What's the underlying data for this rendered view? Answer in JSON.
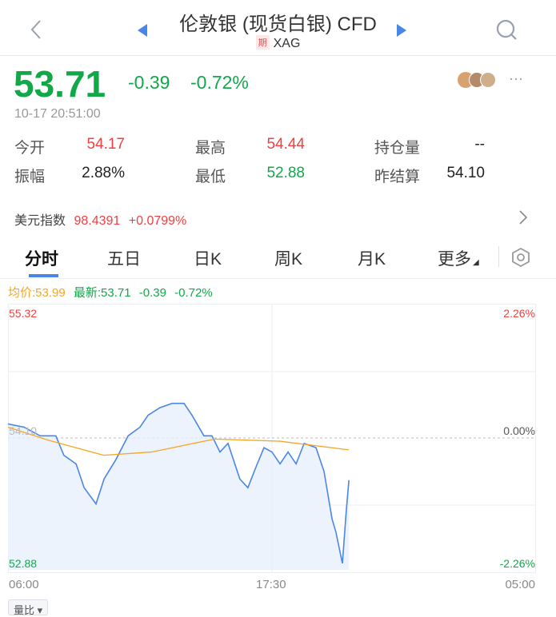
{
  "header": {
    "title": "伦敦银 (现货白银) CFD",
    "badge": "期",
    "symbol": "XAG"
  },
  "quote": {
    "price": "53.71",
    "change": "-0.39",
    "change_pct": "-0.72%",
    "time": "10-17 20:51:00"
  },
  "stats": [
    {
      "label": "今开",
      "value": "54.17",
      "color": "#f04040"
    },
    {
      "label": "最高",
      "value": "54.44",
      "color": "#f04040"
    },
    {
      "label": "持仓量",
      "value": "--",
      "color": "#222222"
    },
    {
      "label": "振幅",
      "value": "2.88%",
      "color": "#222222"
    },
    {
      "label": "最低",
      "value": "52.88",
      "color": "#12a84a"
    },
    {
      "label": "昨结算",
      "value": "54.10",
      "color": "#222222"
    }
  ],
  "index": {
    "label": "美元指数",
    "value": "98.4391",
    "change": "+0.0799%"
  },
  "tabs": [
    {
      "label": "分时",
      "active": true
    },
    {
      "label": "五日"
    },
    {
      "label": "日K"
    },
    {
      "label": "周K"
    },
    {
      "label": "月K"
    },
    {
      "label": "更多"
    }
  ],
  "legend": {
    "avg": "均价:53.99",
    "latest": "最新:53.71",
    "change": "-0.39",
    "pct": "-0.72%"
  },
  "bottom_button": "量比",
  "chart_data": {
    "type": "line",
    "ylim": [
      52.88,
      55.32
    ],
    "prev_close": 54.1,
    "y_labels_left": [
      "55.32",
      "54.10",
      "52.88"
    ],
    "y_labels_right": [
      "2.26%",
      "0.00%",
      "-2.26%"
    ],
    "x_ticks": [
      "06:00",
      "17:30",
      "05:00"
    ],
    "x_range": [
      "06:00",
      "05:00"
    ],
    "colors": {
      "price": "#4a86e8",
      "avg": "#f5a623",
      "up": "#f04040",
      "down": "#12a84a"
    },
    "series": [
      {
        "name": "最新",
        "values": [
          [
            "06:00",
            54.23
          ],
          [
            "06:42",
            54.2
          ],
          [
            "07:24",
            54.12
          ],
          [
            "08:05",
            54.12
          ],
          [
            "08:26",
            53.94
          ],
          [
            "08:58",
            53.86
          ],
          [
            "09:19",
            53.64
          ],
          [
            "09:50",
            53.49
          ],
          [
            "10:11",
            53.72
          ],
          [
            "10:42",
            53.9
          ],
          [
            "11:14",
            54.12
          ],
          [
            "11:45",
            54.2
          ],
          [
            "12:06",
            54.31
          ],
          [
            "12:37",
            54.38
          ],
          [
            "13:09",
            54.42
          ],
          [
            "13:40",
            54.42
          ],
          [
            "14:01",
            54.31
          ],
          [
            "14:32",
            54.12
          ],
          [
            "14:53",
            54.12
          ],
          [
            "15:14",
            53.97
          ],
          [
            "15:35",
            54.05
          ],
          [
            "16:06",
            53.72
          ],
          [
            "16:27",
            53.64
          ],
          [
            "16:48",
            53.83
          ],
          [
            "17:09",
            54.01
          ],
          [
            "17:30",
            53.97
          ],
          [
            "17:51",
            53.86
          ],
          [
            "18:12",
            53.97
          ],
          [
            "18:33",
            53.86
          ],
          [
            "18:54",
            54.05
          ],
          [
            "19:25",
            54.01
          ],
          [
            "19:46",
            53.79
          ],
          [
            "20:07",
            53.35
          ],
          [
            "20:17",
            53.23
          ],
          [
            "20:34",
            52.94
          ],
          [
            "20:44",
            53.42
          ],
          [
            "20:51",
            53.71
          ]
        ]
      },
      {
        "name": "均价",
        "values": [
          [
            "06:00",
            54.2
          ],
          [
            "07:45",
            54.08
          ],
          [
            "10:10",
            53.94
          ],
          [
            "12:15",
            53.97
          ],
          [
            "15:00",
            54.09
          ],
          [
            "17:51",
            54.07
          ],
          [
            "20:51",
            53.99
          ]
        ]
      }
    ]
  }
}
